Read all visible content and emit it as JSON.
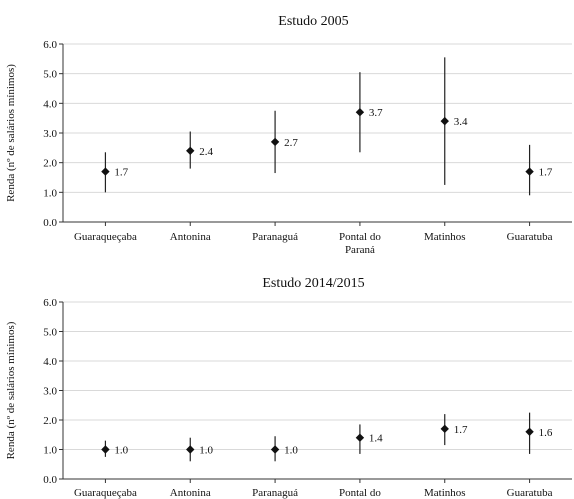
{
  "chart_data": [
    {
      "type": "scatter",
      "title": "Estudo 2005",
      "ylabel": "Renda (nº de salários mínimos)",
      "xlabel": "",
      "categories": [
        "Guaraqueçaba",
        "Antonina",
        "Paranaguá",
        "Pontal do Paraná",
        "Matinhos",
        "Guaratuba"
      ],
      "category_lines": [
        [
          "Guaraqueçaba"
        ],
        [
          "Antonina"
        ],
        [
          "Paranaguá"
        ],
        [
          "Pontal do",
          "Paraná"
        ],
        [
          "Matinhos"
        ],
        [
          "Guaratuba"
        ]
      ],
      "values": [
        1.7,
        2.4,
        2.7,
        3.7,
        3.4,
        1.7
      ],
      "labels": [
        "1.7",
        "2.4",
        "2.7",
        "3.7",
        "3.4",
        "1.7"
      ],
      "error_low": [
        1.0,
        1.8,
        1.65,
        2.35,
        1.25,
        0.9
      ],
      "error_high": [
        2.35,
        3.05,
        3.75,
        5.05,
        5.55,
        2.6
      ],
      "ylim": [
        0,
        6
      ],
      "yticks": [
        "0.0",
        "1.0",
        "2.0",
        "3.0",
        "4.0",
        "5.0",
        "6.0"
      ],
      "grid": true
    },
    {
      "type": "scatter",
      "title": "Estudo 2014/2015",
      "ylabel": "Renda (nº de salários mínimos)",
      "xlabel": "",
      "categories": [
        "Guaraqueçaba",
        "Antonina",
        "Paranaguá",
        "Pontal do",
        "Matinhos",
        "Guaratuba"
      ],
      "category_lines": [
        [
          "Guaraqueçaba"
        ],
        [
          "Antonina"
        ],
        [
          "Paranaguá"
        ],
        [
          "Pontal do"
        ],
        [
          "Matinhos"
        ],
        [
          "Guaratuba"
        ]
      ],
      "values": [
        1.0,
        1.0,
        1.0,
        1.4,
        1.7,
        1.6
      ],
      "labels": [
        "1.0",
        "1.0",
        "1.0",
        "1.4",
        "1.7",
        "1.6"
      ],
      "error_low": [
        0.75,
        0.6,
        0.6,
        0.85,
        1.15,
        0.85
      ],
      "error_high": [
        1.3,
        1.4,
        1.45,
        1.85,
        2.2,
        2.25
      ],
      "ylim": [
        0,
        6
      ],
      "yticks": [
        "0.0",
        "1.0",
        "2.0",
        "3.0",
        "4.0",
        "5.0",
        "6.0"
      ],
      "grid": true
    }
  ]
}
